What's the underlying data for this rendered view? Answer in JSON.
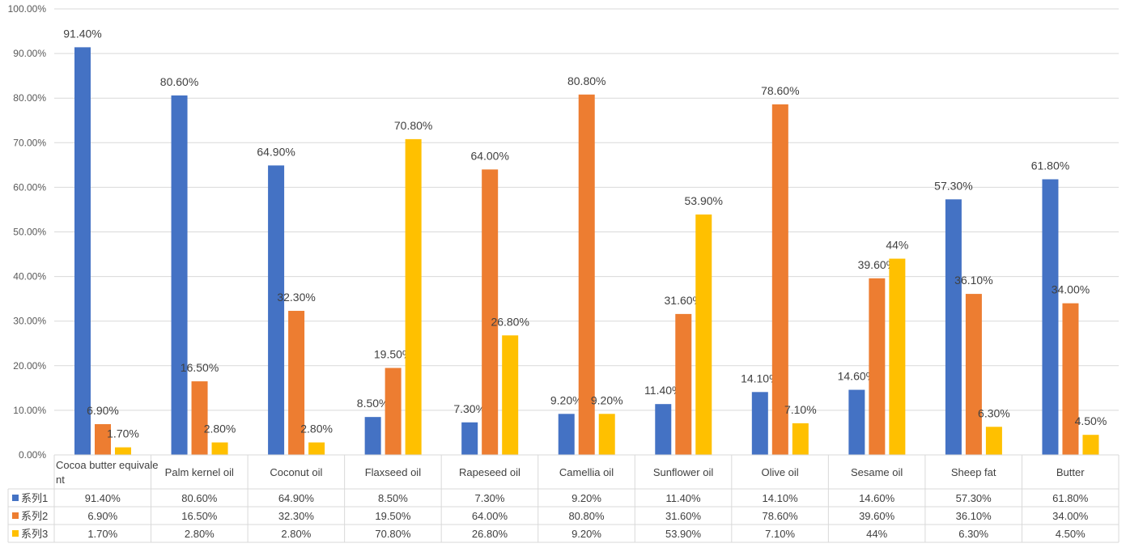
{
  "chart_data": {
    "type": "bar",
    "title": "",
    "xlabel": "",
    "ylabel": "",
    "ylim": [
      0,
      100
    ],
    "yticks": [
      "0.00%",
      "10.00%",
      "20.00%",
      "30.00%",
      "40.00%",
      "50.00%",
      "60.00%",
      "70.00%",
      "80.00%",
      "90.00%",
      "100.00%"
    ],
    "grid": true,
    "legend": "data-table",
    "categories": [
      "Cocoa butter equivalent",
      "Palm kernel oil",
      "Coconut oil",
      "Flaxseed oil",
      "Rapeseed oil",
      "Camellia oil",
      "Sunflower oil",
      "Olive oil",
      "Sesame oil",
      "Sheep fat",
      "Butter"
    ],
    "series": [
      {
        "name": "系列1",
        "color": "#4472c4",
        "values": [
          91.4,
          80.6,
          64.9,
          8.5,
          7.3,
          9.2,
          11.4,
          14.1,
          14.6,
          57.3,
          61.8
        ],
        "labels": [
          "91.40%",
          "80.60%",
          "64.90%",
          "8.50%",
          "7.30%",
          "9.20%",
          "11.40%",
          "14.10%",
          "14.60%",
          "57.30%",
          "61.80%"
        ]
      },
      {
        "name": "系列2",
        "color": "#ed7d31",
        "values": [
          6.9,
          16.5,
          32.3,
          19.5,
          64.0,
          80.8,
          31.6,
          78.6,
          39.6,
          36.1,
          34.0
        ],
        "labels": [
          "6.90%",
          "16.50%",
          "32.30%",
          "19.50%",
          "64.00%",
          "80.80%",
          "31.60%",
          "78.60%",
          "39.60%",
          "36.10%",
          "34.00%"
        ]
      },
      {
        "name": "系列3",
        "color": "#ffc000",
        "values": [
          1.7,
          2.8,
          2.8,
          70.8,
          26.8,
          9.2,
          53.9,
          7.1,
          44,
          6.3,
          4.5
        ],
        "labels": [
          "1.70%",
          "2.80%",
          "2.80%",
          "70.80%",
          "26.80%",
          "9.20%",
          "53.90%",
          "7.10%",
          "44%",
          "6.30%",
          "4.50%"
        ]
      }
    ]
  }
}
